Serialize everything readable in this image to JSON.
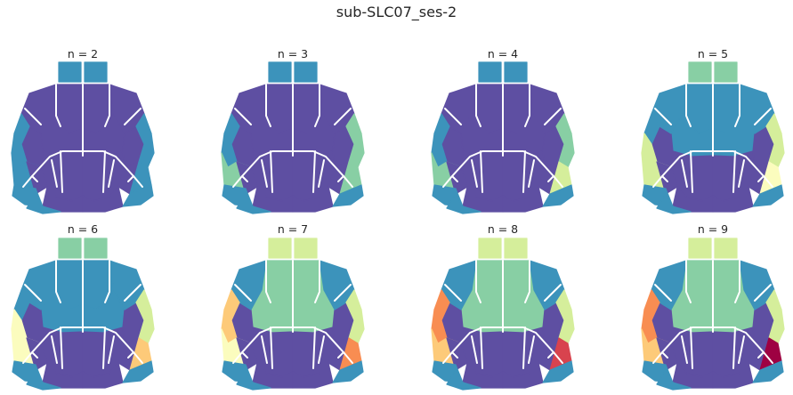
{
  "title": "sub-SLC07_ses-2",
  "panels": [
    {
      "label": "n = 2",
      "pal": [
        "#5e4fa2",
        "#3c93bb"
      ],
      "regions": [
        0,
        0,
        0,
        0,
        0,
        0,
        1,
        1,
        0,
        0,
        0,
        1,
        1,
        1,
        0,
        0,
        0,
        0,
        0,
        1,
        1,
        1,
        1,
        1,
        1
      ]
    },
    {
      "label": "n = 3",
      "pal": [
        "#5e4fa2",
        "#3c93bb",
        "#88cfa4"
      ],
      "regions": [
        0,
        0,
        0,
        0,
        0,
        0,
        1,
        1,
        0,
        0,
        0,
        1,
        1,
        2,
        0,
        0,
        0,
        0,
        0,
        2,
        2,
        2,
        1,
        1,
        1
      ]
    },
    {
      "label": "n = 4",
      "pal": [
        "#5e4fa2",
        "#3c93bb",
        "#88cfa4",
        "#d5ee9b"
      ],
      "regions": [
        0,
        0,
        0,
        0,
        0,
        0,
        1,
        1,
        0,
        0,
        0,
        1,
        1,
        2,
        0,
        0,
        0,
        0,
        0,
        2,
        2,
        3,
        1,
        1,
        1
      ]
    },
    {
      "label": "n = 5",
      "pal": [
        "#5e4fa2",
        "#3c93bb",
        "#88cfa4",
        "#d5ee9b",
        "#fbfcbe"
      ],
      "regions": [
        1,
        1,
        1,
        1,
        0,
        0,
        2,
        2,
        0,
        0,
        1,
        1,
        3,
        3,
        0,
        0,
        0,
        0,
        1,
        3,
        3,
        4,
        1,
        1,
        1
      ]
    },
    {
      "label": "n = 6",
      "pal": [
        "#5e4fa2",
        "#3c93bb",
        "#88cfa4",
        "#d5ee9b",
        "#fbfcbe",
        "#fdca79"
      ],
      "regions": [
        1,
        1,
        1,
        1,
        0,
        0,
        2,
        2,
        0,
        0,
        1,
        1,
        4,
        4,
        0,
        0,
        0,
        0,
        1,
        3,
        3,
        5,
        1,
        1,
        1
      ]
    },
    {
      "label": "n = 7",
      "pal": [
        "#5e4fa2",
        "#3c93bb",
        "#88cfa4",
        "#d5ee9b",
        "#fbfcbe",
        "#fdca79",
        "#f88d52"
      ],
      "regions": [
        2,
        2,
        2,
        2,
        0,
        0,
        3,
        3,
        0,
        0,
        1,
        5,
        5,
        4,
        0,
        0,
        0,
        0,
        1,
        3,
        3,
        6,
        1,
        1,
        1
      ]
    },
    {
      "label": "n = 8",
      "pal": [
        "#5e4fa2",
        "#3c93bb",
        "#88cfa4",
        "#d5ee9b",
        "#fbfcbe",
        "#fdca79",
        "#f88d52",
        "#d8434e"
      ],
      "regions": [
        2,
        2,
        2,
        2,
        0,
        0,
        3,
        3,
        0,
        0,
        1,
        6,
        6,
        5,
        0,
        0,
        0,
        0,
        1,
        3,
        3,
        7,
        1,
        1,
        1
      ]
    },
    {
      "label": "n = 9",
      "pal": [
        "#5e4fa2",
        "#3c93bb",
        "#88cfa4",
        "#d5ee9b",
        "#fbfcbe",
        "#fdca79",
        "#f88d52",
        "#d8434e",
        "#9e0142"
      ],
      "regions": [
        2,
        2,
        2,
        2,
        0,
        0,
        3,
        3,
        0,
        0,
        1,
        6,
        6,
        5,
        0,
        0,
        0,
        0,
        1,
        3,
        3,
        8,
        1,
        1,
        1
      ]
    }
  ]
}
